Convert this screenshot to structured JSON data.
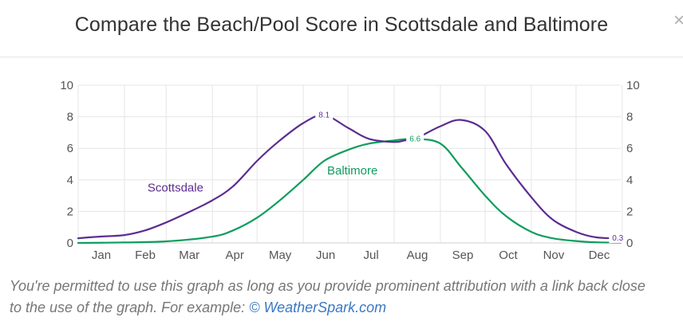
{
  "header": {
    "title": "Compare the Beach/Pool Score in Scottsdale and Baltimore",
    "close_glyph": "×"
  },
  "caption": {
    "line1": "You're permitted to use this graph as long as you provide prominent attribution with a link back close",
    "line2_prefix": "to the use of the graph. For example: ",
    "link_text": "© WeatherSpark.com"
  },
  "chart_data": {
    "type": "line",
    "title": "Compare the Beach/Pool Score in Scottsdale and Baltimore",
    "xlabel": "",
    "ylabel": "",
    "months": [
      "Jan",
      "Feb",
      "Mar",
      "Apr",
      "May",
      "Jun",
      "Jul",
      "Aug",
      "Sep",
      "Oct",
      "Nov",
      "Dec"
    ],
    "ylim": [
      0,
      10
    ],
    "yticks": [
      0,
      2,
      4,
      6,
      8,
      10
    ],
    "grid": true,
    "series": [
      {
        "name": "Scottsdale",
        "color": "#5c2d91",
        "x": [
          1,
          15,
          32,
          46,
          60,
          74,
          91,
          105,
          121,
          135,
          152,
          166,
          182,
          196,
          213,
          220,
          227,
          244,
          258,
          274,
          288,
          305,
          319,
          335,
          349,
          365
        ],
        "values": [
          0.3,
          0.4,
          0.5,
          0.8,
          1.3,
          1.9,
          2.7,
          3.6,
          5.2,
          6.4,
          7.6,
          8.1,
          7.3,
          6.6,
          6.4,
          6.5,
          6.6,
          7.4,
          7.8,
          7.1,
          5.0,
          2.9,
          1.5,
          0.7,
          0.35,
          0.3
        ],
        "annotations": [
          {
            "label": "8.1",
            "x": 166,
            "y": 8.1
          },
          {
            "label": "0.3",
            "x": 363,
            "y": 0.3
          }
        ]
      },
      {
        "name": "Baltimore",
        "color": "#0e9d5e",
        "x": [
          1,
          32,
          60,
          91,
          105,
          121,
          135,
          152,
          166,
          182,
          196,
          213,
          227,
          244,
          258,
          274,
          288,
          305,
          319,
          335,
          349,
          365
        ],
        "values": [
          0.0,
          0.03,
          0.1,
          0.4,
          0.8,
          1.6,
          2.6,
          4.0,
          5.2,
          5.9,
          6.3,
          6.5,
          6.6,
          6.3,
          4.8,
          3.0,
          1.7,
          0.7,
          0.3,
          0.12,
          0.04,
          0.02
        ],
        "annotations": [
          {
            "label": "6.6",
            "x": 227,
            "y": 6.6
          }
        ]
      }
    ]
  }
}
